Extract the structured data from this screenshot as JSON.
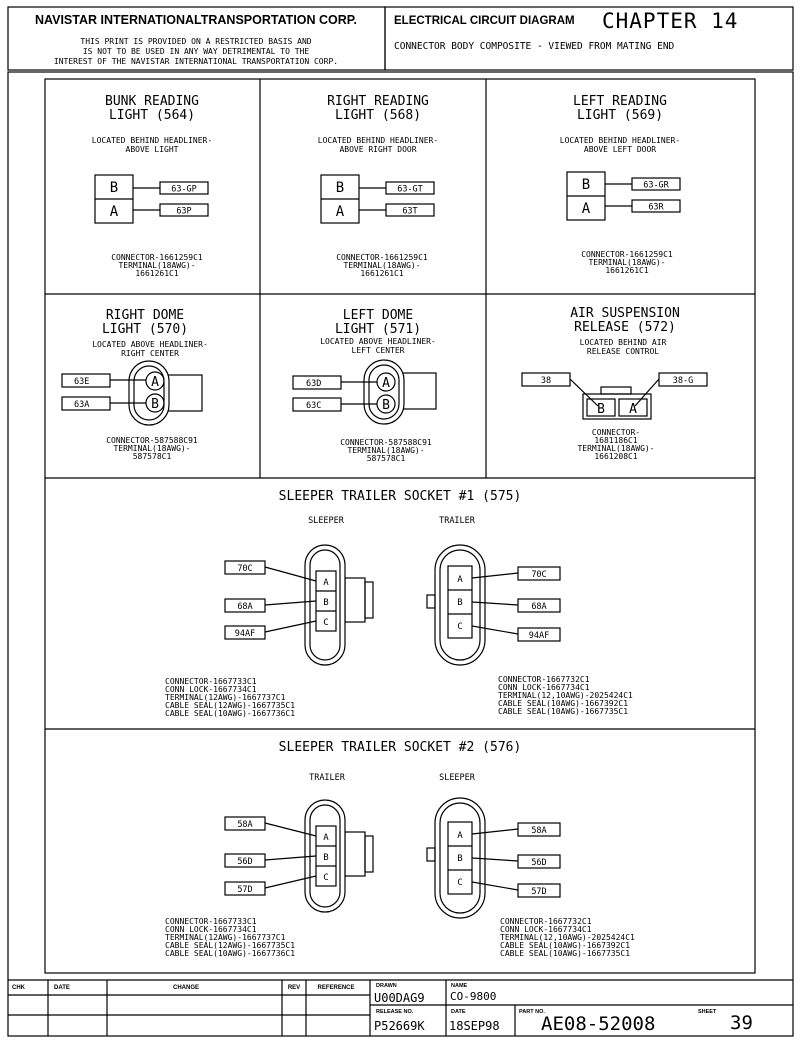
{
  "header": {
    "company": "NAVISTAR INTERNATIONALTRANSPORTATION CORP.",
    "notice_lines": [
      "THIS PRINT IS PROVIDED ON A RESTRICTED BASIS AND",
      "IS NOT TO BE USED IN ANY WAY DETRIMENTAL TO THE",
      "INTEREST OF THE NAVISTAR INTERNATIONAL TRANSPORTATION CORP."
    ],
    "diagram_title": "ELECTRICAL CIRCUIT DIAGRAM",
    "chapter": "CHAPTER 14",
    "subtitle": "CONNECTOR BODY COMPOSITE - VIEWED FROM MATING END"
  },
  "panels": {
    "bunk": {
      "title_lines": [
        "BUNK READING",
        "LIGHT (564)"
      ],
      "location_lines": [
        "LOCATED BEHIND HEADLINER-",
        "ABOVE LIGHT"
      ],
      "pins": [
        "B",
        "A"
      ],
      "wires": [
        "63-GP",
        "63P"
      ],
      "part_lines": [
        "CONNECTOR-1661259C1",
        "TERMINAL(18AWG)-",
        "1661261C1"
      ]
    },
    "right_reading": {
      "title_lines": [
        "RIGHT READING",
        "LIGHT (568)"
      ],
      "location_lines": [
        "LOCATED BEHIND HEADLINER-",
        "ABOVE RIGHT DOOR"
      ],
      "pins": [
        "B",
        "A"
      ],
      "wires": [
        "63-GT",
        "63T"
      ],
      "part_lines": [
        "CONNECTOR-1661259C1",
        "TERMINAL(18AWG)-",
        "1661261C1"
      ]
    },
    "left_reading": {
      "title_lines": [
        "LEFT READING",
        "LIGHT (569)"
      ],
      "location_lines": [
        "LOCATED BEHIND HEADLINER-",
        "ABOVE LEFT DOOR"
      ],
      "pins": [
        "B",
        "A"
      ],
      "wires": [
        "63-GR",
        "63R"
      ],
      "part_lines": [
        "CONNECTOR-1661259C1",
        "TERMINAL(18AWG)-",
        "1661261C1"
      ]
    },
    "right_dome": {
      "title_lines": [
        "RIGHT DOME",
        "LIGHT (570)"
      ],
      "location_lines": [
        "LOCATED ABOVE HEADLINER-",
        "RIGHT CENTER"
      ],
      "pins": [
        "A",
        "B"
      ],
      "wires": [
        "63E",
        "63A"
      ],
      "part_lines": [
        "CONNECTOR-587588C91",
        "TERMINAL(18AWG)-",
        "587578C1"
      ]
    },
    "left_dome": {
      "title_lines": [
        "LEFT DOME",
        "LIGHT (571)"
      ],
      "location_lines": [
        "LOCATED ABOVE HEADLINER-",
        "LEFT CENTER"
      ],
      "pins": [
        "A",
        "B"
      ],
      "wires": [
        "63D",
        "63C"
      ],
      "part_lines": [
        "CONNECTOR-587588C91",
        "TERMINAL(18AWG)-",
        "587578C1"
      ]
    },
    "air_susp": {
      "title_lines": [
        "AIR SUSPENSION",
        "RELEASE (572)"
      ],
      "location_lines": [
        "LOCATED BEHIND AIR",
        "RELEASE CONTROL"
      ],
      "pins": [
        "B",
        "A"
      ],
      "wires": [
        "38",
        "38-G"
      ],
      "part_lines": [
        "CONNECTOR-",
        "1681186C1",
        "TERMINAL(18AWG)-",
        "1661208C1"
      ]
    }
  },
  "socket1": {
    "title": "SLEEPER TRAILER SOCKET #1 (575)",
    "left_label": "SLEEPER",
    "right_label": "TRAILER",
    "pins": [
      "A",
      "B",
      "C"
    ],
    "left_wires": [
      "70C",
      "68A",
      "94AF"
    ],
    "right_wires": [
      "70C",
      "68A",
      "94AF"
    ],
    "left_parts": [
      "CONNECTOR-1667733C1",
      "CONN LOCK-1667734C1",
      "TERMINAL(12AWG)-1667737C1",
      "CABLE SEAL(12AWG)-1667735C1",
      "CABLE SEAL(10AWG)-1667736C1"
    ],
    "right_parts": [
      "CONNECTOR-1667732C1",
      "CONN LOCK-1667734C1",
      "TERMINAL(12,10AWG)-2025424C1",
      "CABLE SEAL(10AWG)-1667392C1",
      "CABLE SEAL(10AWG)-1667735C1"
    ]
  },
  "socket2": {
    "title": "SLEEPER TRAILER SOCKET #2 (576)",
    "left_label": "TRAILER",
    "right_label": "SLEEPER",
    "pins": [
      "A",
      "B",
      "C"
    ],
    "left_wires": [
      "58A",
      "56D",
      "57D"
    ],
    "right_wires": [
      "58A",
      "56D",
      "57D"
    ],
    "left_parts": [
      "CONNECTOR-1667733C1",
      "CONN LOCK-1667734C1",
      "TERMINAL(12AWG)-1667737C1",
      "CABLE SEAL(12AWG)-1667735C1",
      "CABLE SEAL(10AWG)-1667736C1"
    ],
    "right_parts": [
      "CONNECTOR-1667732C1",
      "CONN LOCK-1667734C1",
      "TERMINAL(12,10AWG)-2025424C1",
      "CABLE SEAL(10AWG)-1667392C1",
      "CABLE SEAL(10AWG)-1667735C1"
    ]
  },
  "titleblock": {
    "chk_label": "CHK",
    "date_label": "DATE",
    "change_label": "CHANGE",
    "rev_label": "REV",
    "reference_label": "REFERENCE",
    "drawn_label": "DRAWN",
    "drawn_value": "U00DAG9",
    "name_label": "NAME",
    "name_value": "CO-9800",
    "release_label": "RELEASE NO.",
    "release_value": "P52669K",
    "date2_label": "DATE",
    "date2_value": "18SEP98",
    "part_label": "PART NO.",
    "part_value": "AE08-52008",
    "sheet_label": "SHEET",
    "sheet_value": "39"
  }
}
